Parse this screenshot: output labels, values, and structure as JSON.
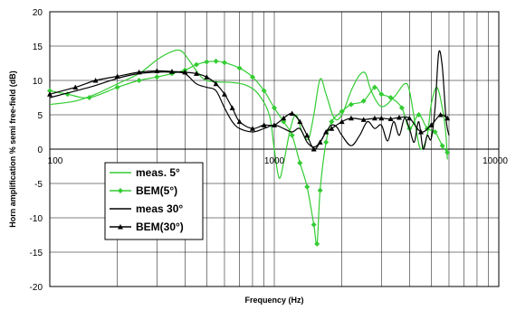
{
  "chart_data": {
    "type": "line",
    "xlabel": "Frequency (Hz)",
    "ylabel": "Horn amplification % semi free-field (dB)",
    "xscale": "log",
    "xlim": [
      100,
      10000
    ],
    "ylim": [
      -20,
      20
    ],
    "x_ticks": [
      "100",
      "1000",
      "10000"
    ],
    "y_ticks": [
      "20",
      "15",
      "10",
      "5",
      "0",
      "-5",
      "-10",
      "-15",
      "-20"
    ],
    "grid": true,
    "legend_position": "lower-left",
    "series": [
      {
        "name": "meas. 5°",
        "color": "#33cc33",
        "marker": "none",
        "points": [
          [
            100,
            6.5
          ],
          [
            130,
            7
          ],
          [
            160,
            8
          ],
          [
            200,
            9.5
          ],
          [
            250,
            11
          ],
          [
            300,
            13
          ],
          [
            350,
            14.2
          ],
          [
            385,
            14.3
          ],
          [
            420,
            12.8
          ],
          [
            480,
            10.3
          ],
          [
            550,
            9.8
          ],
          [
            650,
            9.7
          ],
          [
            750,
            9.3
          ],
          [
            850,
            8
          ],
          [
            950,
            5
          ],
          [
            1000,
            0
          ],
          [
            1050,
            -4.2
          ],
          [
            1100,
            -2
          ],
          [
            1180,
            3
          ],
          [
            1250,
            5
          ],
          [
            1330,
            2.5
          ],
          [
            1420,
            1.5
          ],
          [
            1500,
            5
          ],
          [
            1600,
            10.2
          ],
          [
            1700,
            8
          ],
          [
            1850,
            4.5
          ],
          [
            2000,
            5
          ],
          [
            2200,
            8.5
          ],
          [
            2400,
            10.8
          ],
          [
            2550,
            11
          ],
          [
            2700,
            8.5
          ],
          [
            3000,
            6.2
          ],
          [
            3400,
            7.5
          ],
          [
            3800,
            9.5
          ],
          [
            4000,
            8.5
          ],
          [
            4300,
            2.5
          ],
          [
            4500,
            0
          ],
          [
            4800,
            2
          ],
          [
            5000,
            6.5
          ],
          [
            5300,
            9
          ],
          [
            5600,
            6
          ],
          [
            5800,
            2.5
          ],
          [
            5900,
            -1.5
          ]
        ]
      },
      {
        "name": "BEM(5°)",
        "color": "#33cc33",
        "marker": "diamond",
        "points": [
          [
            100,
            8.5
          ],
          [
            120,
            8
          ],
          [
            150,
            7.5
          ],
          [
            200,
            9
          ],
          [
            250,
            10
          ],
          [
            300,
            10.5
          ],
          [
            350,
            11
          ],
          [
            400,
            11.5
          ],
          [
            450,
            12.3
          ],
          [
            500,
            12.7
          ],
          [
            550,
            12.8
          ],
          [
            600,
            12.6
          ],
          [
            700,
            11.8
          ],
          [
            800,
            10.5
          ],
          [
            900,
            8.5
          ],
          [
            1000,
            6
          ],
          [
            1100,
            4
          ],
          [
            1200,
            2
          ],
          [
            1300,
            -2
          ],
          [
            1400,
            -5.5
          ],
          [
            1500,
            -11
          ],
          [
            1550,
            -13.8
          ],
          [
            1600,
            -6
          ],
          [
            1700,
            1
          ],
          [
            1800,
            4
          ],
          [
            2000,
            5.5
          ],
          [
            2200,
            6.5
          ],
          [
            2500,
            7
          ],
          [
            2800,
            9
          ],
          [
            3000,
            8
          ],
          [
            3300,
            7.5
          ],
          [
            3700,
            6
          ],
          [
            4000,
            3
          ],
          [
            4400,
            5
          ],
          [
            4800,
            3
          ],
          [
            5200,
            2.5
          ],
          [
            5600,
            0.5
          ],
          [
            5900,
            -0.5
          ]
        ]
      },
      {
        "name": "meas 30°",
        "color": "#000000",
        "marker": "none",
        "points": [
          [
            100,
            7.5
          ],
          [
            150,
            9
          ],
          [
            200,
            10.3
          ],
          [
            250,
            11
          ],
          [
            300,
            11.2
          ],
          [
            350,
            11.2
          ],
          [
            400,
            11
          ],
          [
            450,
            9.5
          ],
          [
            500,
            9
          ],
          [
            550,
            8.5
          ],
          [
            600,
            6
          ],
          [
            650,
            4
          ],
          [
            700,
            3
          ],
          [
            800,
            2.5
          ],
          [
            900,
            3
          ],
          [
            1000,
            3.5
          ],
          [
            1100,
            3
          ],
          [
            1200,
            2.5
          ],
          [
            1300,
            3
          ],
          [
            1400,
            1
          ],
          [
            1500,
            0.3
          ],
          [
            1600,
            1
          ],
          [
            1700,
            2.5
          ],
          [
            1800,
            3.5
          ],
          [
            1900,
            3.2
          ],
          [
            2000,
            2
          ],
          [
            2200,
            0.5
          ],
          [
            2400,
            2
          ],
          [
            2600,
            4
          ],
          [
            2800,
            3
          ],
          [
            3000,
            3.5
          ],
          [
            3200,
            1.2
          ],
          [
            3400,
            4
          ],
          [
            3600,
            2
          ],
          [
            3800,
            4.5
          ],
          [
            4000,
            3
          ],
          [
            4200,
            1
          ],
          [
            4400,
            4
          ],
          [
            4600,
            0
          ],
          [
            4800,
            2
          ],
          [
            5000,
            1.5
          ],
          [
            5200,
            6
          ],
          [
            5400,
            14
          ],
          [
            5600,
            12
          ],
          [
            5800,
            5
          ],
          [
            5900,
            3
          ],
          [
            6000,
            2
          ]
        ]
      },
      {
        "name": "BEM(30°)",
        "color": "#000000",
        "marker": "triangle",
        "points": [
          [
            100,
            8
          ],
          [
            130,
            9
          ],
          [
            160,
            10
          ],
          [
            200,
            10.6
          ],
          [
            250,
            11.2
          ],
          [
            300,
            11.4
          ],
          [
            350,
            11.3
          ],
          [
            400,
            11.2
          ],
          [
            450,
            11
          ],
          [
            500,
            10.5
          ],
          [
            550,
            9.5
          ],
          [
            600,
            8
          ],
          [
            650,
            6
          ],
          [
            700,
            4
          ],
          [
            800,
            3
          ],
          [
            900,
            3.5
          ],
          [
            1000,
            3.5
          ],
          [
            1100,
            4.5
          ],
          [
            1200,
            5.2
          ],
          [
            1300,
            4
          ],
          [
            1400,
            2
          ],
          [
            1500,
            0
          ],
          [
            1600,
            1
          ],
          [
            1700,
            2.5
          ],
          [
            1800,
            3
          ],
          [
            2000,
            4
          ],
          [
            2200,
            4.5
          ],
          [
            2500,
            4.3
          ],
          [
            2800,
            4.5
          ],
          [
            3000,
            4.5
          ],
          [
            3300,
            4.4
          ],
          [
            3600,
            4.6
          ],
          [
            4000,
            4.5
          ],
          [
            4500,
            2.5
          ],
          [
            5000,
            3.5
          ],
          [
            5500,
            5
          ],
          [
            5900,
            4.5
          ]
        ]
      }
    ]
  }
}
